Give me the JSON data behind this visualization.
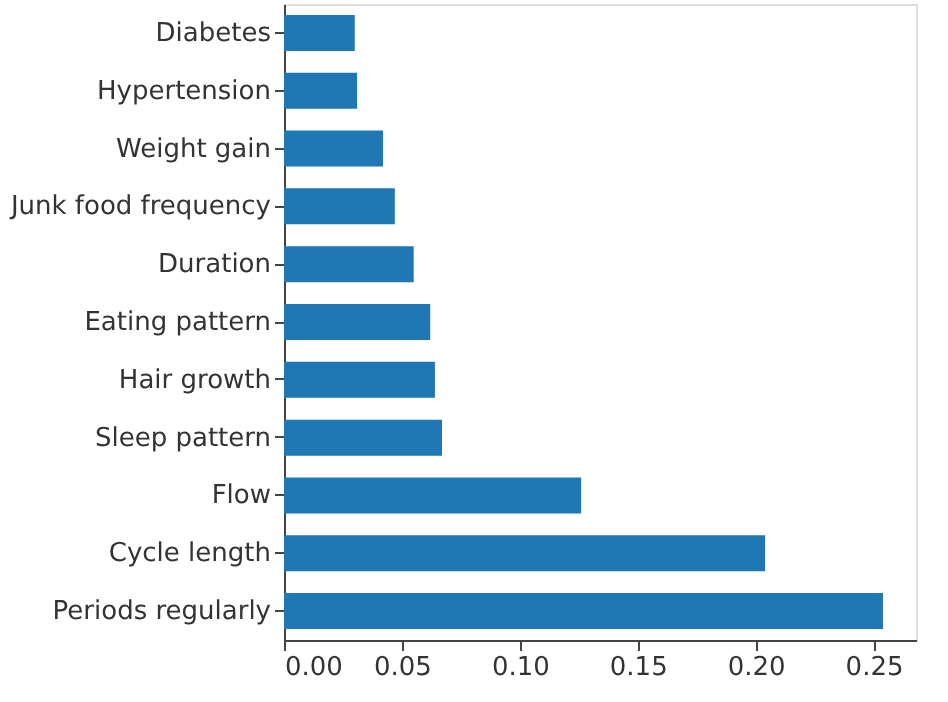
{
  "chart_data": {
    "type": "bar",
    "orientation": "horizontal",
    "categories": [
      "Diabetes",
      "Hypertension",
      "Weight gain",
      "Junk food frequency",
      "Duration",
      "Eating pattern",
      "Hair growth",
      "Sleep pattern",
      "Flow",
      "Cycle length",
      "Periods regularly"
    ],
    "values": [
      0.03,
      0.031,
      0.042,
      0.047,
      0.055,
      0.062,
      0.064,
      0.067,
      0.126,
      0.204,
      0.254
    ],
    "color": "#1f77b4",
    "xlim": [
      0,
      0.268
    ],
    "xticks": [
      {
        "value": 0,
        "label": "0.00"
      },
      0.05,
      {
        "value": 0.1,
        "label": "0.10"
      },
      0.15,
      {
        "value": 0.2,
        "label": "0.20"
      },
      0.25
    ]
  }
}
